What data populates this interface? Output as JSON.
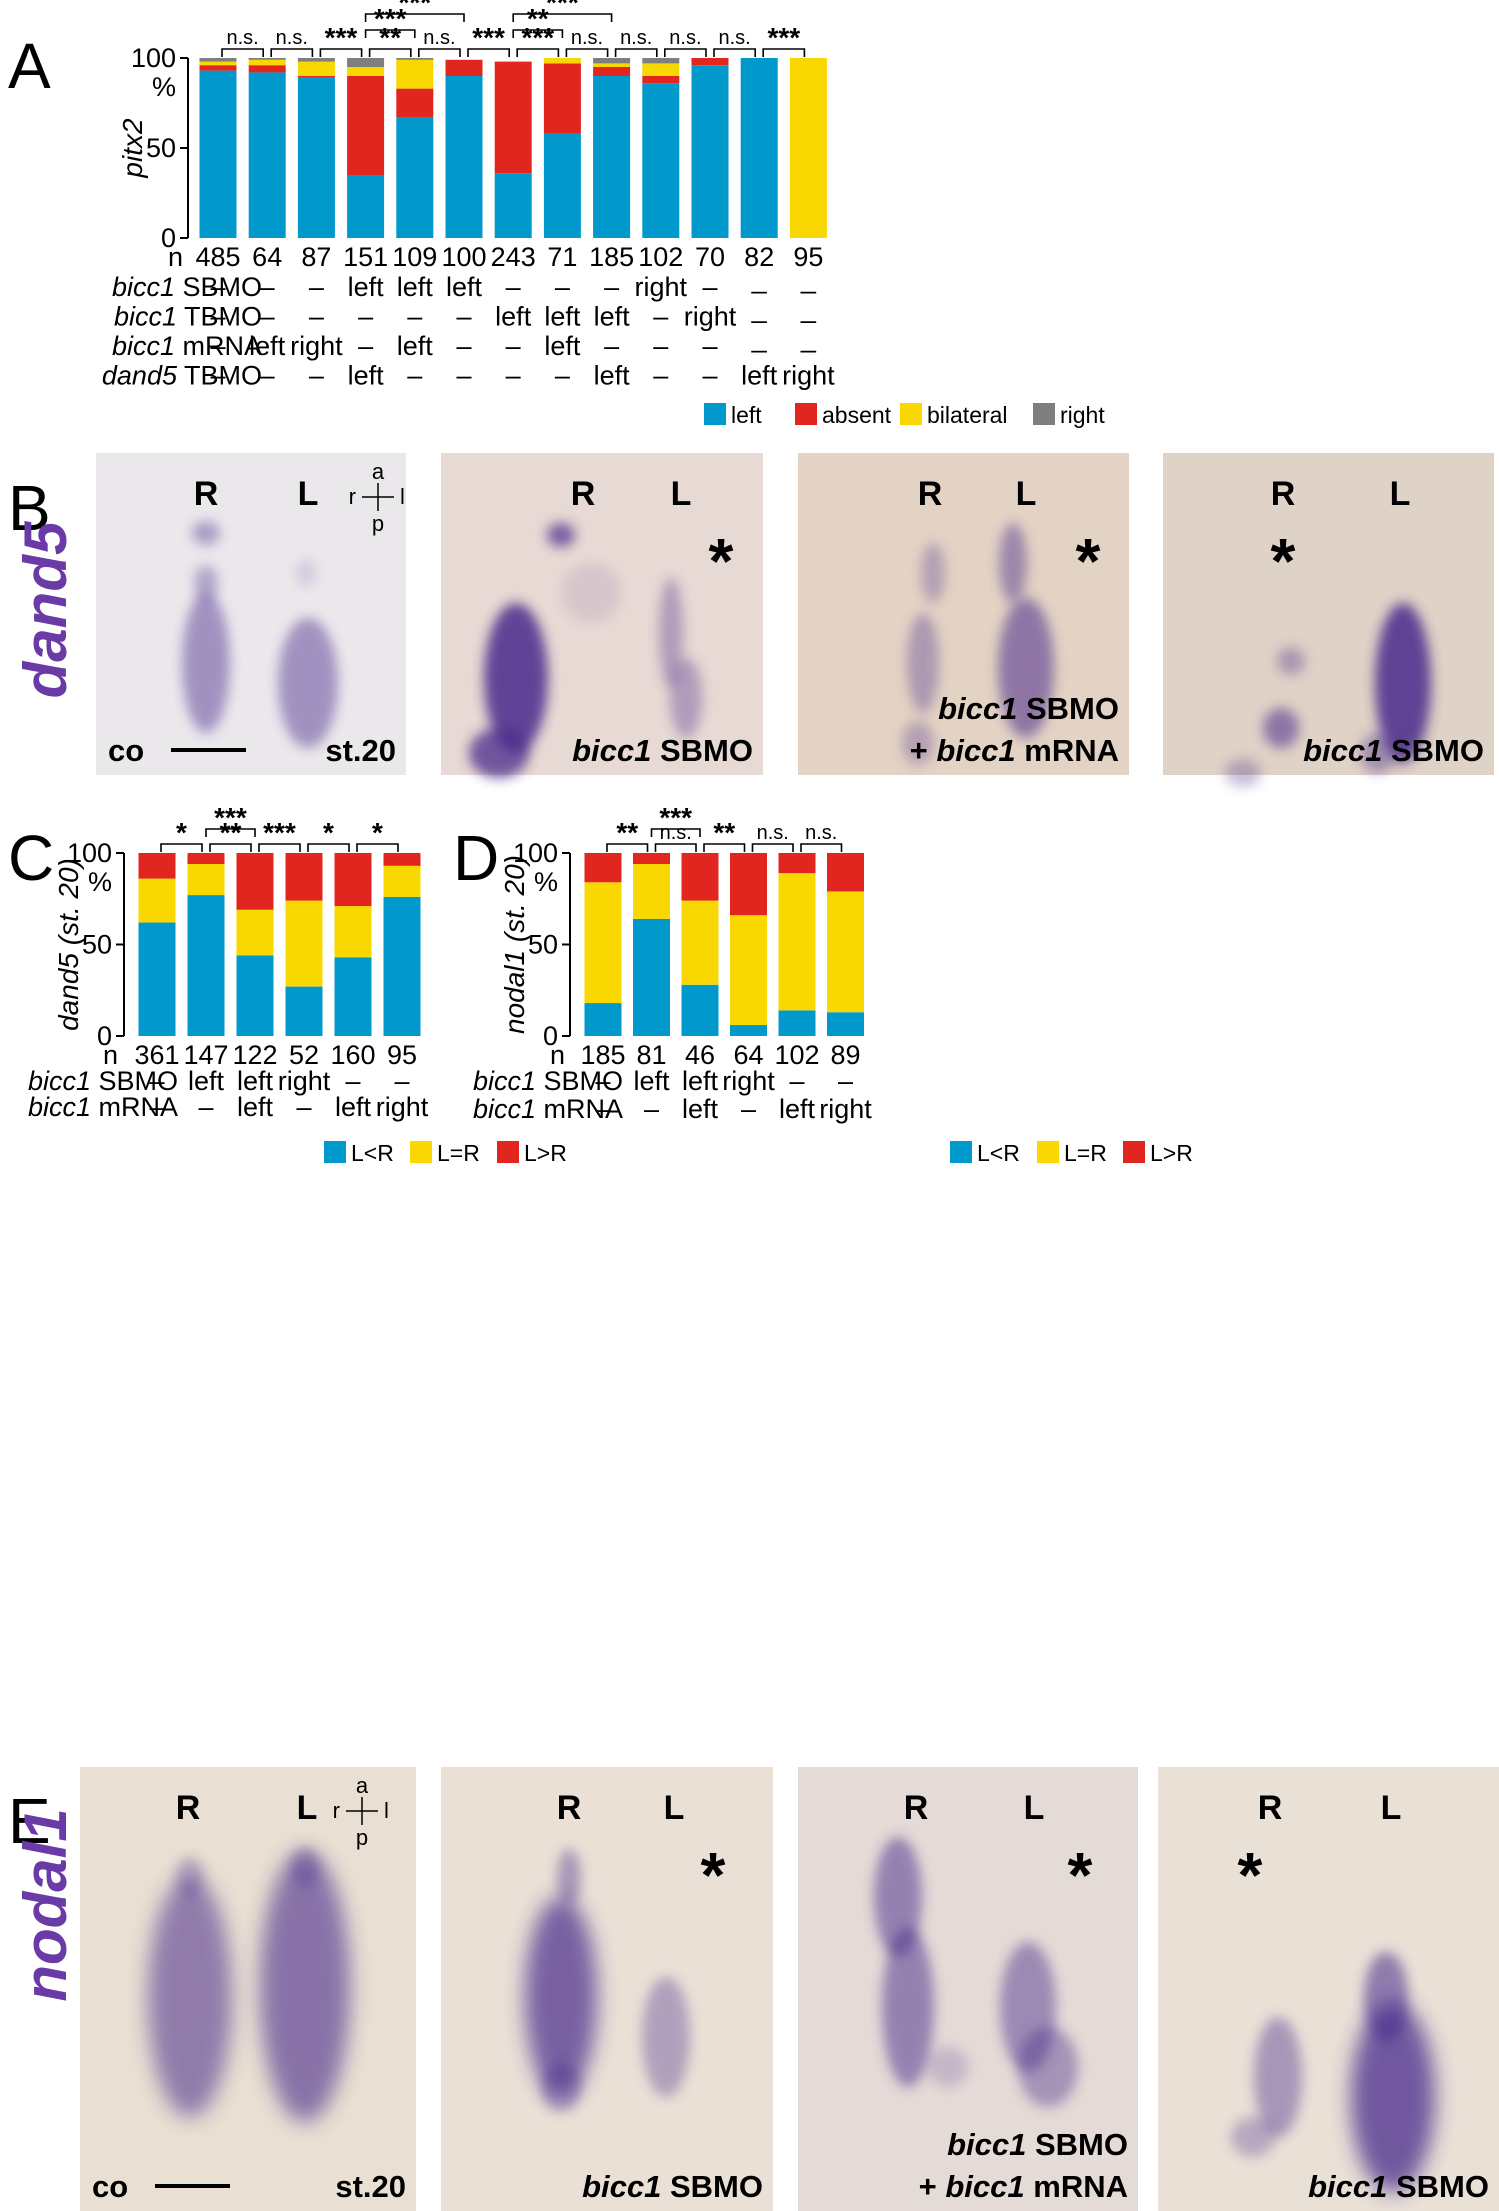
{
  "colors": {
    "left": "#0199cc",
    "absent": "#e0261f",
    "bilateral": "#f8d800",
    "right": "#7f7f7f",
    "stain": "#4a2c8c",
    "gene_label": "#6a3aa6"
  },
  "panelA": {
    "panel_label": "A",
    "y_axis_title": "pitx2",
    "y_ticks": [
      "0",
      "50",
      "100"
    ],
    "y_unit": "%",
    "n_label": "n",
    "n_values": [
      "485",
      "64",
      "87",
      "151",
      "109",
      "100",
      "243",
      "71",
      "185",
      "102",
      "70",
      "82",
      "95"
    ],
    "rows": [
      {
        "gene": "bicc1",
        "suffix": "SBMO",
        "values": [
          "–",
          "–",
          "–",
          "left",
          "left",
          "left",
          "–",
          "–",
          "–",
          "right",
          "–",
          "_",
          "_"
        ]
      },
      {
        "gene": "bicc1",
        "suffix": "TBMO",
        "values": [
          "–",
          "–",
          "–",
          "–",
          "–",
          "–",
          "left",
          "left",
          "left",
          "–",
          "right",
          "_",
          "_"
        ]
      },
      {
        "gene": "bicc1",
        "suffix": "mRNA",
        "values": [
          "–",
          "left",
          "right",
          "–",
          "left",
          "–",
          "–",
          "left",
          "–",
          "–",
          "–",
          "_",
          "_"
        ]
      },
      {
        "gene": "dand5",
        "suffix": "TBMO",
        "values": [
          "–",
          "–",
          "–",
          "left",
          "–",
          "–",
          "–",
          "–",
          "left",
          "–",
          "–",
          "left",
          "right"
        ]
      }
    ],
    "legend": [
      "left",
      "absent",
      "bilateral",
      "right"
    ],
    "significance": {
      "adjacent": [
        "n.s.",
        "n.s.",
        "***",
        "**",
        "n.s.",
        "***",
        "***",
        "n.s.",
        "n.s.",
        "n.s.",
        "n.s.",
        "***"
      ],
      "spans": [
        {
          "from": 3,
          "to": 5,
          "label": "***"
        },
        {
          "from": 3,
          "to": 4,
          "label": "***"
        },
        {
          "from": 6,
          "to": 8,
          "label": "***"
        },
        {
          "from": 6,
          "to": 7,
          "label": "**"
        }
      ]
    }
  },
  "panelB": {
    "panel_label": "B",
    "gene": "dand5",
    "axis_letters": {
      "a": "a",
      "p": "p",
      "r": "r",
      "l": "l"
    },
    "images": [
      {
        "R": "R",
        "L": "L",
        "caption_left": "co",
        "caption_right": "st.20",
        "line1_gene": "",
        "line1_rest": "",
        "line2_pre": "",
        "line2_gene": "",
        "line2_rest": "",
        "asterisk": ""
      },
      {
        "R": "R",
        "L": "L",
        "caption_left": "",
        "caption_right": "",
        "line1_gene": "",
        "line1_rest": "",
        "line2_pre": "",
        "line2_gene": "bicc1",
        "line2_rest": " SBMO",
        "asterisk": "*"
      },
      {
        "R": "R",
        "L": "L",
        "caption_left": "",
        "caption_right": "",
        "line1_gene": "bicc1",
        "line1_rest": " SBMO",
        "line2_pre": "+ ",
        "line2_gene": "bicc1",
        "line2_rest": " mRNA",
        "asterisk": "*"
      },
      {
        "R": "R",
        "L": "L",
        "caption_left": "",
        "caption_right": "",
        "line1_gene": "",
        "line1_rest": "",
        "line2_pre": "",
        "line2_gene": "bicc1",
        "line2_rest": " SBMO",
        "asterisk": "*"
      }
    ]
  },
  "panelC": {
    "panel_label": "C",
    "y_axis_title": "dand5 (st. 20)",
    "y_ticks": [
      "0",
      "50",
      "100"
    ],
    "y_unit": "%",
    "n_label": "n",
    "n_values": [
      "361",
      "147",
      "122",
      "52",
      "160",
      "95"
    ],
    "rows": [
      {
        "gene": "bicc1",
        "suffix": "SBMO",
        "values": [
          "–",
          "left",
          "left",
          "right",
          "–",
          "–"
        ]
      },
      {
        "gene": "bicc1",
        "suffix": "mRNA",
        "values": [
          "–",
          "–",
          "left",
          "–",
          "left",
          "right"
        ]
      }
    ],
    "legend": [
      "L<R",
      "L=R",
      "L>R"
    ],
    "significance": {
      "adjacent": [
        "*",
        "**",
        "***",
        "*",
        "*"
      ],
      "spans": [
        {
          "from": 1,
          "to": 2,
          "label": "***"
        }
      ]
    }
  },
  "panelD": {
    "panel_label": "D",
    "y_axis_title": "nodal1 (st. 20)",
    "y_ticks": [
      "0",
      "50",
      "100"
    ],
    "y_unit": "%",
    "n_label": "n",
    "n_values": [
      "185",
      "81",
      "46",
      "64",
      "102",
      "89"
    ],
    "rows": [
      {
        "gene": "bicc1",
        "suffix": "SBMO",
        "values": [
          "–",
          "left",
          "left",
          "right",
          "–",
          "–"
        ]
      },
      {
        "gene": "bicc1",
        "suffix": "mRNA",
        "values": [
          "–",
          "–",
          "left",
          "–",
          "left",
          "right"
        ]
      }
    ],
    "legend": [
      "L<R",
      "L=R",
      "L>R"
    ],
    "significance": {
      "adjacent": [
        "**",
        "n.s.",
        "**",
        "n.s.",
        "n.s."
      ],
      "spans": [
        {
          "from": 1,
          "to": 2,
          "label": "***"
        }
      ]
    }
  },
  "panelE": {
    "panel_label": "E",
    "gene": "nodal1",
    "axis_letters": {
      "a": "a",
      "p": "p",
      "r": "r",
      "l": "l"
    },
    "images": [
      {
        "R": "R",
        "L": "L",
        "caption_left": "co",
        "caption_right": "st.20",
        "line1_gene": "",
        "line1_rest": "",
        "line2_pre": "",
        "line2_gene": "",
        "line2_rest": "",
        "asterisk": ""
      },
      {
        "R": "R",
        "L": "L",
        "caption_left": "",
        "caption_right": "",
        "line1_gene": "",
        "line1_rest": "",
        "line2_pre": "",
        "line2_gene": "bicc1",
        "line2_rest": " SBMO",
        "asterisk": "*"
      },
      {
        "R": "R",
        "L": "L",
        "caption_left": "",
        "caption_right": "",
        "line1_gene": "bicc1",
        "line1_rest": " SBMO",
        "line2_pre": "+ ",
        "line2_gene": "bicc1",
        "line2_rest": " mRNA",
        "asterisk": "*"
      },
      {
        "R": "R",
        "L": "L",
        "caption_left": "",
        "caption_right": "",
        "line1_gene": "",
        "line1_rest": "",
        "line2_pre": "",
        "line2_gene": "bicc1",
        "line2_rest": " SBMO",
        "asterisk": "*"
      }
    ]
  },
  "chart_data": [
    {
      "type": "bar",
      "stacked": true,
      "ylabel": "pitx2",
      "ylim": [
        0,
        100
      ],
      "categories": [
        "485",
        "64",
        "87",
        "151",
        "109",
        "100",
        "243",
        "71",
        "185",
        "102",
        "70",
        "82",
        "95"
      ],
      "series": [
        {
          "name": "left",
          "values": [
            93,
            92,
            89,
            35,
            67,
            90,
            36,
            58,
            90,
            86,
            96,
            100,
            0
          ]
        },
        {
          "name": "absent",
          "values": [
            3,
            4,
            1,
            55,
            16,
            9,
            62,
            39,
            5,
            4,
            4,
            0,
            0
          ]
        },
        {
          "name": "bilateral",
          "values": [
            2,
            3,
            8,
            5,
            16,
            0,
            0,
            3,
            2,
            7,
            0,
            0,
            100
          ]
        },
        {
          "name": "right",
          "values": [
            2,
            1,
            2,
            5,
            1,
            0,
            0,
            0,
            3,
            3,
            0,
            0,
            0
          ]
        }
      ]
    },
    {
      "type": "bar",
      "stacked": true,
      "ylabel": "dand5 (st. 20)",
      "ylim": [
        0,
        100
      ],
      "categories": [
        "361",
        "147",
        "122",
        "52",
        "160",
        "95"
      ],
      "series": [
        {
          "name": "L<R",
          "values": [
            62,
            77,
            44,
            27,
            43,
            76
          ]
        },
        {
          "name": "L=R",
          "values": [
            24,
            17,
            25,
            47,
            28,
            17
          ]
        },
        {
          "name": "L>R",
          "values": [
            14,
            6,
            31,
            26,
            29,
            7
          ]
        }
      ]
    },
    {
      "type": "bar",
      "stacked": true,
      "ylabel": "nodal1 (st. 20)",
      "ylim": [
        0,
        100
      ],
      "categories": [
        "185",
        "81",
        "46",
        "64",
        "102",
        "89"
      ],
      "series": [
        {
          "name": "L<R",
          "values": [
            18,
            64,
            28,
            6,
            14,
            13
          ]
        },
        {
          "name": "L=R",
          "values": [
            66,
            30,
            46,
            60,
            75,
            66
          ]
        },
        {
          "name": "L>R",
          "values": [
            16,
            6,
            26,
            34,
            11,
            21
          ]
        }
      ]
    }
  ]
}
